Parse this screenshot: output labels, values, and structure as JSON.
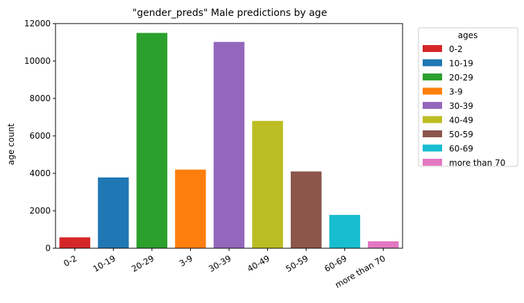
{
  "chart_data": {
    "type": "bar",
    "title": "\"gender_preds\" Male predictions by age",
    "xlabel": "",
    "ylabel": "age count",
    "ylim": [
      0,
      12000
    ],
    "yticks": [
      0,
      2000,
      4000,
      6000,
      8000,
      10000,
      12000
    ],
    "categories": [
      "0-2",
      "10-19",
      "20-29",
      "3-9",
      "30-39",
      "40-49",
      "50-59",
      "60-69",
      "more than 70"
    ],
    "values": [
      580,
      3780,
      11500,
      4200,
      11020,
      6800,
      4100,
      1780,
      370
    ],
    "colors": [
      "#d62728",
      "#1f77b4",
      "#2ca02c",
      "#ff7f0e",
      "#9467bd",
      "#bcbd22",
      "#8c564b",
      "#17becf",
      "#e377c2"
    ],
    "grid": false,
    "legend": {
      "title": "ages",
      "placement": "outside-right",
      "entries": [
        "0-2",
        "10-19",
        "20-29",
        "3-9",
        "30-39",
        "40-49",
        "50-59",
        "60-69",
        "more than 70"
      ]
    }
  }
}
